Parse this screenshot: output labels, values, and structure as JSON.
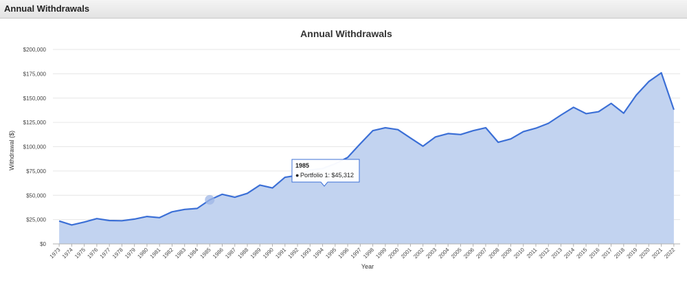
{
  "panel": {
    "title": "Annual Withdrawals"
  },
  "colors": {
    "line": "#3b6fd6",
    "area": "#c2d3f0",
    "grid": "#e6e6e6"
  },
  "tooltip": {
    "title": "1985",
    "bullet": "●",
    "series_label": "Portfolio 1",
    "value_label": "$45,312",
    "year": 1985
  },
  "chart_data": {
    "type": "area",
    "title": "Annual Withdrawals",
    "xlabel": "Year",
    "ylabel": "Withdrawal ($)",
    "ylim": [
      0,
      200000
    ],
    "yticks": [
      0,
      25000,
      50000,
      75000,
      100000,
      125000,
      150000,
      175000,
      200000
    ],
    "ytick_labels": [
      "$0",
      "$25,000",
      "$50,000",
      "$75,000",
      "$100,000",
      "$125,000",
      "$150,000",
      "$175,000",
      "$200,000"
    ],
    "x": [
      1973,
      1974,
      1975,
      1976,
      1977,
      1978,
      1979,
      1980,
      1981,
      1982,
      1983,
      1984,
      1985,
      1986,
      1987,
      1988,
      1989,
      1990,
      1991,
      1992,
      1993,
      1994,
      1995,
      1996,
      1997,
      1998,
      1999,
      2000,
      2001,
      2002,
      2003,
      2004,
      2005,
      2006,
      2007,
      2008,
      2009,
      2010,
      2011,
      2012,
      2013,
      2014,
      2015,
      2016,
      2017,
      2018,
      2019,
      2020,
      2021,
      2022
    ],
    "series": [
      {
        "values": [
          23500,
          19500,
          22500,
          26000,
          24000,
          23800,
          25500,
          28200,
          27000,
          33000,
          35500,
          36500,
          45312,
          51000,
          48000,
          52000,
          60500,
          57500,
          68500,
          70500,
          76000,
          77500,
          82500,
          89000,
          103000,
          116500,
          119500,
          117500,
          109000,
          100500,
          110000,
          113500,
          112500,
          116500,
          119500,
          104500,
          108000,
          115500,
          119000,
          124000,
          132500,
          140500,
          134000,
          136000,
          144500,
          134500,
          153000,
          167000,
          176000,
          138000
        ]
      }
    ],
    "grid": true,
    "legend": "none"
  }
}
